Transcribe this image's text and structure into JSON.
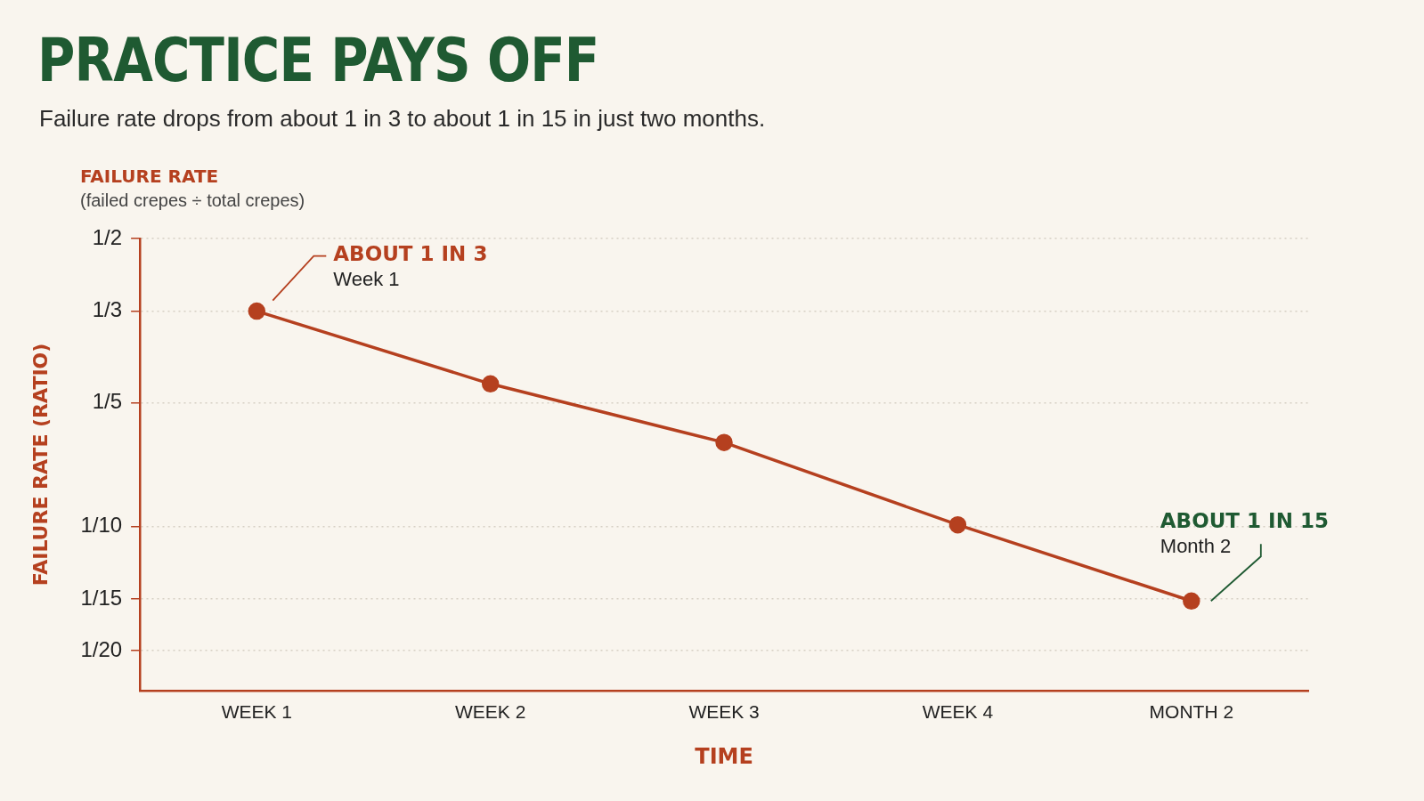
{
  "chart_data": {
    "type": "line",
    "title": "PRACTICE PAYS OFF",
    "subtitle": "Failure rate drops from about 1 in 3 to about 1 in 15 in just two months.",
    "xlabel": "TIME",
    "ylabel": "FAILURE RATE (RATIO)",
    "categories": [
      "WEEK 1",
      "WEEK 2",
      "WEEK 3",
      "WEEK 4",
      "MONTH 2"
    ],
    "series": [
      {
        "color": "#b5401f",
        "values": [
          0.3333,
          0.222,
          0.16,
          0.101,
          0.066
        ]
      }
    ],
    "log": "y",
    "ylim": [
      0.04,
      0.5
    ],
    "yticks": [
      {
        "value": 0.5,
        "label": "1/2"
      },
      {
        "value": 0.3333,
        "label": "1/3"
      },
      {
        "value": 0.2,
        "label": "1/5"
      },
      {
        "value": 0.1,
        "label": "1/10"
      },
      {
        "value": 0.0667,
        "label": "1/15"
      },
      {
        "value": 0.05,
        "label": "1/20"
      }
    ],
    "grid": "y",
    "marker": "circle",
    "line_style": "solid",
    "annotations": [
      "FAILURE RATE",
      "(failed crepes ÷ total crepes)",
      "ABOUT 1 IN 3",
      "Week 1",
      "ABOUT 1 IN 15",
      "Month 2"
    ]
  }
}
